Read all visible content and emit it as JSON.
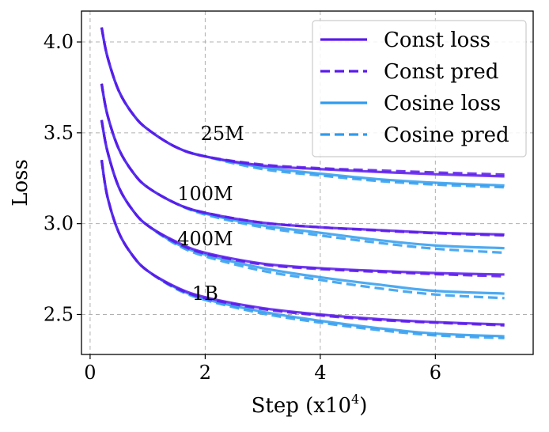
{
  "chart_data": {
    "type": "line",
    "title": "",
    "xlabel": "Step (x10",
    "xlabel_exponent": "4",
    "xlabel_suffix": ")",
    "ylabel": "Loss",
    "xlim": [
      -0.15,
      7.7
    ],
    "ylim": [
      2.28,
      4.17
    ],
    "xticks": [
      0,
      2,
      4,
      6
    ],
    "xtick_labels": [
      "0",
      "2",
      "4",
      "6"
    ],
    "yticks": [
      2.5,
      3.0,
      3.5,
      4.0
    ],
    "ytick_labels": [
      "2.5",
      "3.0",
      "3.5",
      "4.0"
    ],
    "grid": true,
    "legend_position": "top-right",
    "colors": {
      "const": "#5b1aeb",
      "cosine": "#2e9bef"
    },
    "legend": [
      {
        "label": "Const loss",
        "color": "#5b1aeb",
        "dash": "solid"
      },
      {
        "label": "Const pred",
        "color": "#5b1aeb",
        "dash": "dashed"
      },
      {
        "label": "Cosine loss",
        "color": "#2e9bef",
        "dash": "solid"
      },
      {
        "label": "Cosine pred",
        "color": "#2e9bef",
        "dash": "dashed"
      }
    ],
    "x": [
      0.2,
      0.3,
      0.5,
      0.75,
      1.0,
      1.5,
      2.0,
      3.0,
      4.0,
      5.0,
      6.0,
      7.2
    ],
    "curves": [
      {
        "label": "25M",
        "label_x": 2.3,
        "label_y": 3.46,
        "const_loss": [
          4.08,
          3.92,
          3.73,
          3.6,
          3.52,
          3.42,
          3.37,
          3.32,
          3.3,
          3.285,
          3.272,
          3.26
        ],
        "const_pred": [
          4.08,
          3.92,
          3.73,
          3.6,
          3.52,
          3.42,
          3.37,
          3.325,
          3.305,
          3.293,
          3.282,
          3.27
        ],
        "cosine_loss": [
          4.08,
          3.92,
          3.73,
          3.6,
          3.52,
          3.42,
          3.37,
          3.31,
          3.275,
          3.245,
          3.225,
          3.21
        ],
        "cosine_pred": [
          4.08,
          3.92,
          3.73,
          3.6,
          3.52,
          3.42,
          3.37,
          3.3,
          3.265,
          3.235,
          3.215,
          3.2
        ]
      },
      {
        "label": "100M",
        "label_x": 2.0,
        "label_y": 3.13,
        "const_loss": [
          3.77,
          3.6,
          3.41,
          3.28,
          3.2,
          3.11,
          3.06,
          3.005,
          2.98,
          2.965,
          2.95,
          2.94
        ],
        "const_pred": [
          3.77,
          3.6,
          3.41,
          3.28,
          3.2,
          3.11,
          3.06,
          3.005,
          2.98,
          2.962,
          2.947,
          2.935
        ],
        "cosine_loss": [
          3.77,
          3.6,
          3.41,
          3.28,
          3.2,
          3.11,
          3.055,
          2.99,
          2.95,
          2.91,
          2.88,
          2.865
        ],
        "cosine_pred": [
          3.77,
          3.6,
          3.41,
          3.28,
          3.2,
          3.11,
          3.05,
          2.98,
          2.935,
          2.895,
          2.862,
          2.84
        ]
      },
      {
        "label": "400M",
        "label_x": 2.0,
        "label_y": 2.88,
        "const_loss": [
          3.57,
          3.4,
          3.2,
          3.07,
          2.99,
          2.9,
          2.84,
          2.78,
          2.755,
          2.74,
          2.728,
          2.72
        ],
        "const_pred": [
          3.57,
          3.4,
          3.2,
          3.07,
          2.99,
          2.895,
          2.835,
          2.775,
          2.75,
          2.735,
          2.722,
          2.71
        ],
        "cosine_loss": [
          3.57,
          3.4,
          3.2,
          3.07,
          2.99,
          2.89,
          2.83,
          2.755,
          2.705,
          2.665,
          2.63,
          2.615
        ],
        "cosine_pred": [
          3.57,
          3.4,
          3.2,
          3.07,
          2.99,
          2.885,
          2.82,
          2.74,
          2.69,
          2.645,
          2.61,
          2.59
        ]
      },
      {
        "label": "1B",
        "label_x": 2.0,
        "label_y": 2.58,
        "const_loss": [
          3.35,
          3.15,
          2.95,
          2.82,
          2.74,
          2.65,
          2.595,
          2.535,
          2.5,
          2.475,
          2.458,
          2.445
        ],
        "const_pred": [
          3.35,
          3.15,
          2.95,
          2.82,
          2.74,
          2.645,
          2.59,
          2.53,
          2.495,
          2.47,
          2.455,
          2.44
        ],
        "cosine_loss": [
          3.35,
          3.15,
          2.95,
          2.82,
          2.74,
          2.645,
          2.585,
          2.515,
          2.465,
          2.425,
          2.395,
          2.38
        ],
        "cosine_pred": [
          3.35,
          3.15,
          2.95,
          2.82,
          2.74,
          2.64,
          2.58,
          2.505,
          2.455,
          2.415,
          2.385,
          2.37
        ]
      }
    ]
  }
}
